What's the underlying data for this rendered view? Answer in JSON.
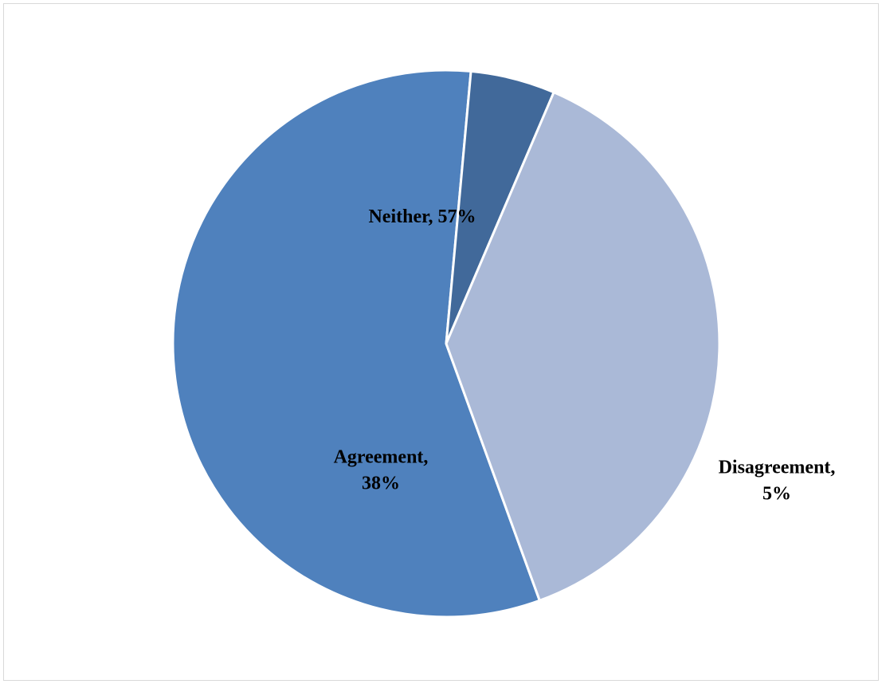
{
  "chart_data": {
    "type": "pie",
    "title": "",
    "slices": [
      {
        "name": "Neither",
        "value": 57,
        "color": "#4F81BD",
        "label_lines": [
          "Neither, 57%"
        ]
      },
      {
        "name": "Disagreement",
        "value": 5,
        "color": "#41699A",
        "label_lines": [
          "Disagreement,",
          "5%"
        ]
      },
      {
        "name": "Agreement",
        "value": 38,
        "color": "#AAB9D7",
        "label_lines": [
          "Agreement,",
          "38%"
        ]
      }
    ],
    "units": "%",
    "start_angle_deg": -70,
    "direction": "counterclockwise",
    "legend": "none",
    "data_labels": "category name and percentage"
  }
}
